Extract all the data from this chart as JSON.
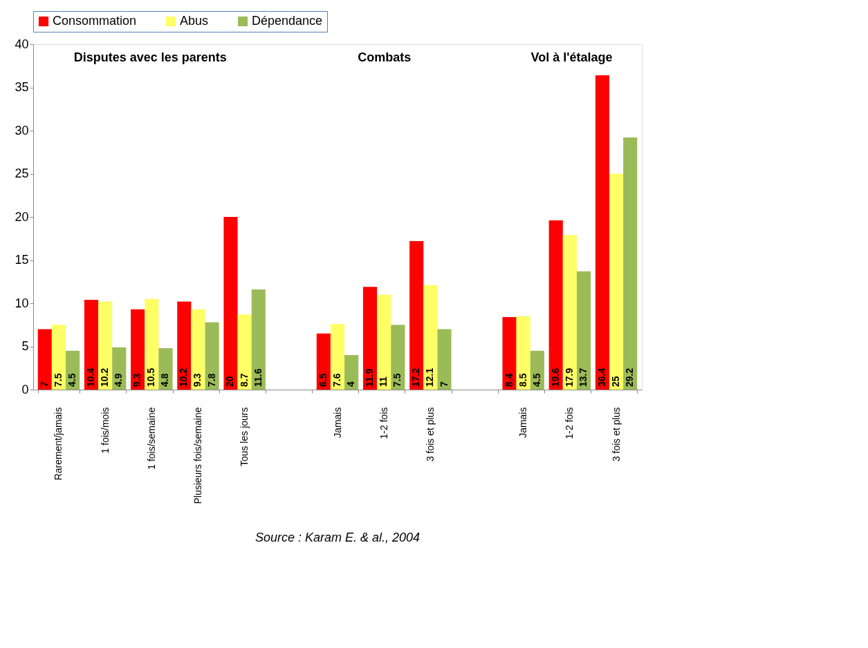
{
  "chart_data": {
    "type": "bar",
    "categories": [
      "Rarement/jamais",
      "1 fois/mois",
      "1 fois/semaine",
      "Plusieurs fois/semaine",
      "Tous les jours",
      null,
      "Jamais",
      "1-2 fois",
      "3 fois et plus",
      null,
      "Jamais",
      "1-2 fois",
      "3 fois et plus"
    ],
    "series": [
      {
        "name": "Consommation",
        "color": "#ff0000",
        "values": [
          7,
          10.4,
          9.3,
          10.2,
          20,
          null,
          6.5,
          11.9,
          17.2,
          null,
          8.4,
          19.6,
          36.4
        ]
      },
      {
        "name": "Abus",
        "color": "#ffff66",
        "values": [
          7.5,
          10.2,
          10.5,
          9.3,
          8.7,
          null,
          7.6,
          11,
          12.1,
          null,
          8.5,
          17.9,
          25
        ]
      },
      {
        "name": "Dépendance",
        "color": "#9bbb59",
        "values": [
          4.5,
          4.9,
          4.8,
          7.8,
          11.6,
          null,
          4,
          7.5,
          7,
          null,
          4.5,
          13.7,
          29.2
        ]
      }
    ],
    "ylim": [
      0,
      40
    ],
    "yticks": [
      0,
      5,
      10,
      15,
      20,
      25,
      30,
      35,
      40
    ],
    "grid": false,
    "legend": "top",
    "data_labels": true,
    "annotations": [
      "Disputes avec les parents",
      "Combats",
      "Vol à l'étalage",
      "Source : Karam E. & al., 2004"
    ]
  }
}
